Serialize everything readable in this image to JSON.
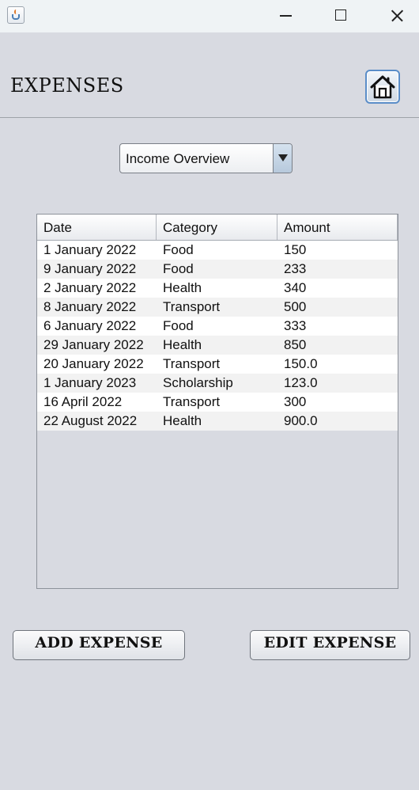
{
  "window": {
    "icon": "java-cup-icon",
    "controls": [
      "minimize-icon",
      "maximize-icon",
      "close-icon"
    ]
  },
  "header": {
    "title": "EXPENSES",
    "home_icon": "home-icon"
  },
  "dropdown": {
    "selected": "Income Overview",
    "arrow_icon": "triangle-down-icon"
  },
  "table": {
    "columns": [
      "Date",
      "Category",
      "Amount"
    ],
    "rows": [
      [
        "1 January 2022",
        "Food",
        "150"
      ],
      [
        "9 January 2022",
        "Food",
        "233"
      ],
      [
        "2 January 2022",
        "Health",
        "340"
      ],
      [
        "8 January 2022",
        "Transport",
        "500"
      ],
      [
        "6 January 2022",
        "Food",
        "333"
      ],
      [
        "29 January 2022",
        "Health",
        "850"
      ],
      [
        "20 January 2022",
        "Transport",
        "150.0"
      ],
      [
        "1 January 2023",
        "Scholarship",
        "123.0"
      ],
      [
        "16 April 2022",
        "Transport",
        "300"
      ],
      [
        "22 August 2022",
        "Health",
        "900.0"
      ]
    ]
  },
  "buttons": {
    "add_label": "ADD EXPENSE",
    "edit_label": "EDIT EXPENSE"
  },
  "colors": {
    "background": "#d8dae1",
    "titlebar": "#eff3f5",
    "accent": "#5a8dc8",
    "row_alt": "#f2f2f2"
  }
}
